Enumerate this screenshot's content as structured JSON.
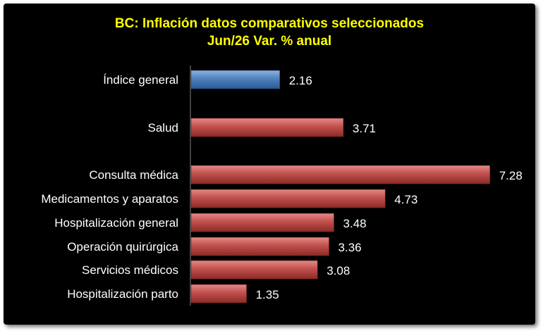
{
  "chart_data": {
    "type": "bar",
    "orientation": "horizontal",
    "title": "BC: Inflación datos comparativos seleccionados",
    "subtitle": "Jun/26 Var. % anual",
    "categories": [
      "Índice general",
      "Salud",
      "Consulta médica",
      "Medicamentos y aparatos",
      "Hospitalización general",
      "Operación quirúrgica",
      "Servicios médicos",
      "Hospitalización parto"
    ],
    "values": [
      2.16,
      3.71,
      7.28,
      4.73,
      3.48,
      3.36,
      3.08,
      1.35
    ],
    "data_labels": [
      "2.16",
      "3.71",
      "7.28",
      "4.73",
      "3.48",
      "3.36",
      "3.08",
      "1.35"
    ],
    "bar_colors": [
      "#4f81bd",
      "#c0504d",
      "#c0504d",
      "#c0504d",
      "#c0504d",
      "#c0504d",
      "#c0504d",
      "#c0504d"
    ],
    "xlim": [
      0,
      7.5
    ],
    "grid": false,
    "legend": "none"
  },
  "colors": {
    "background": "#000000",
    "title": "#ffff00",
    "labels": "#ffffff",
    "axis": "#7f7f7f"
  }
}
